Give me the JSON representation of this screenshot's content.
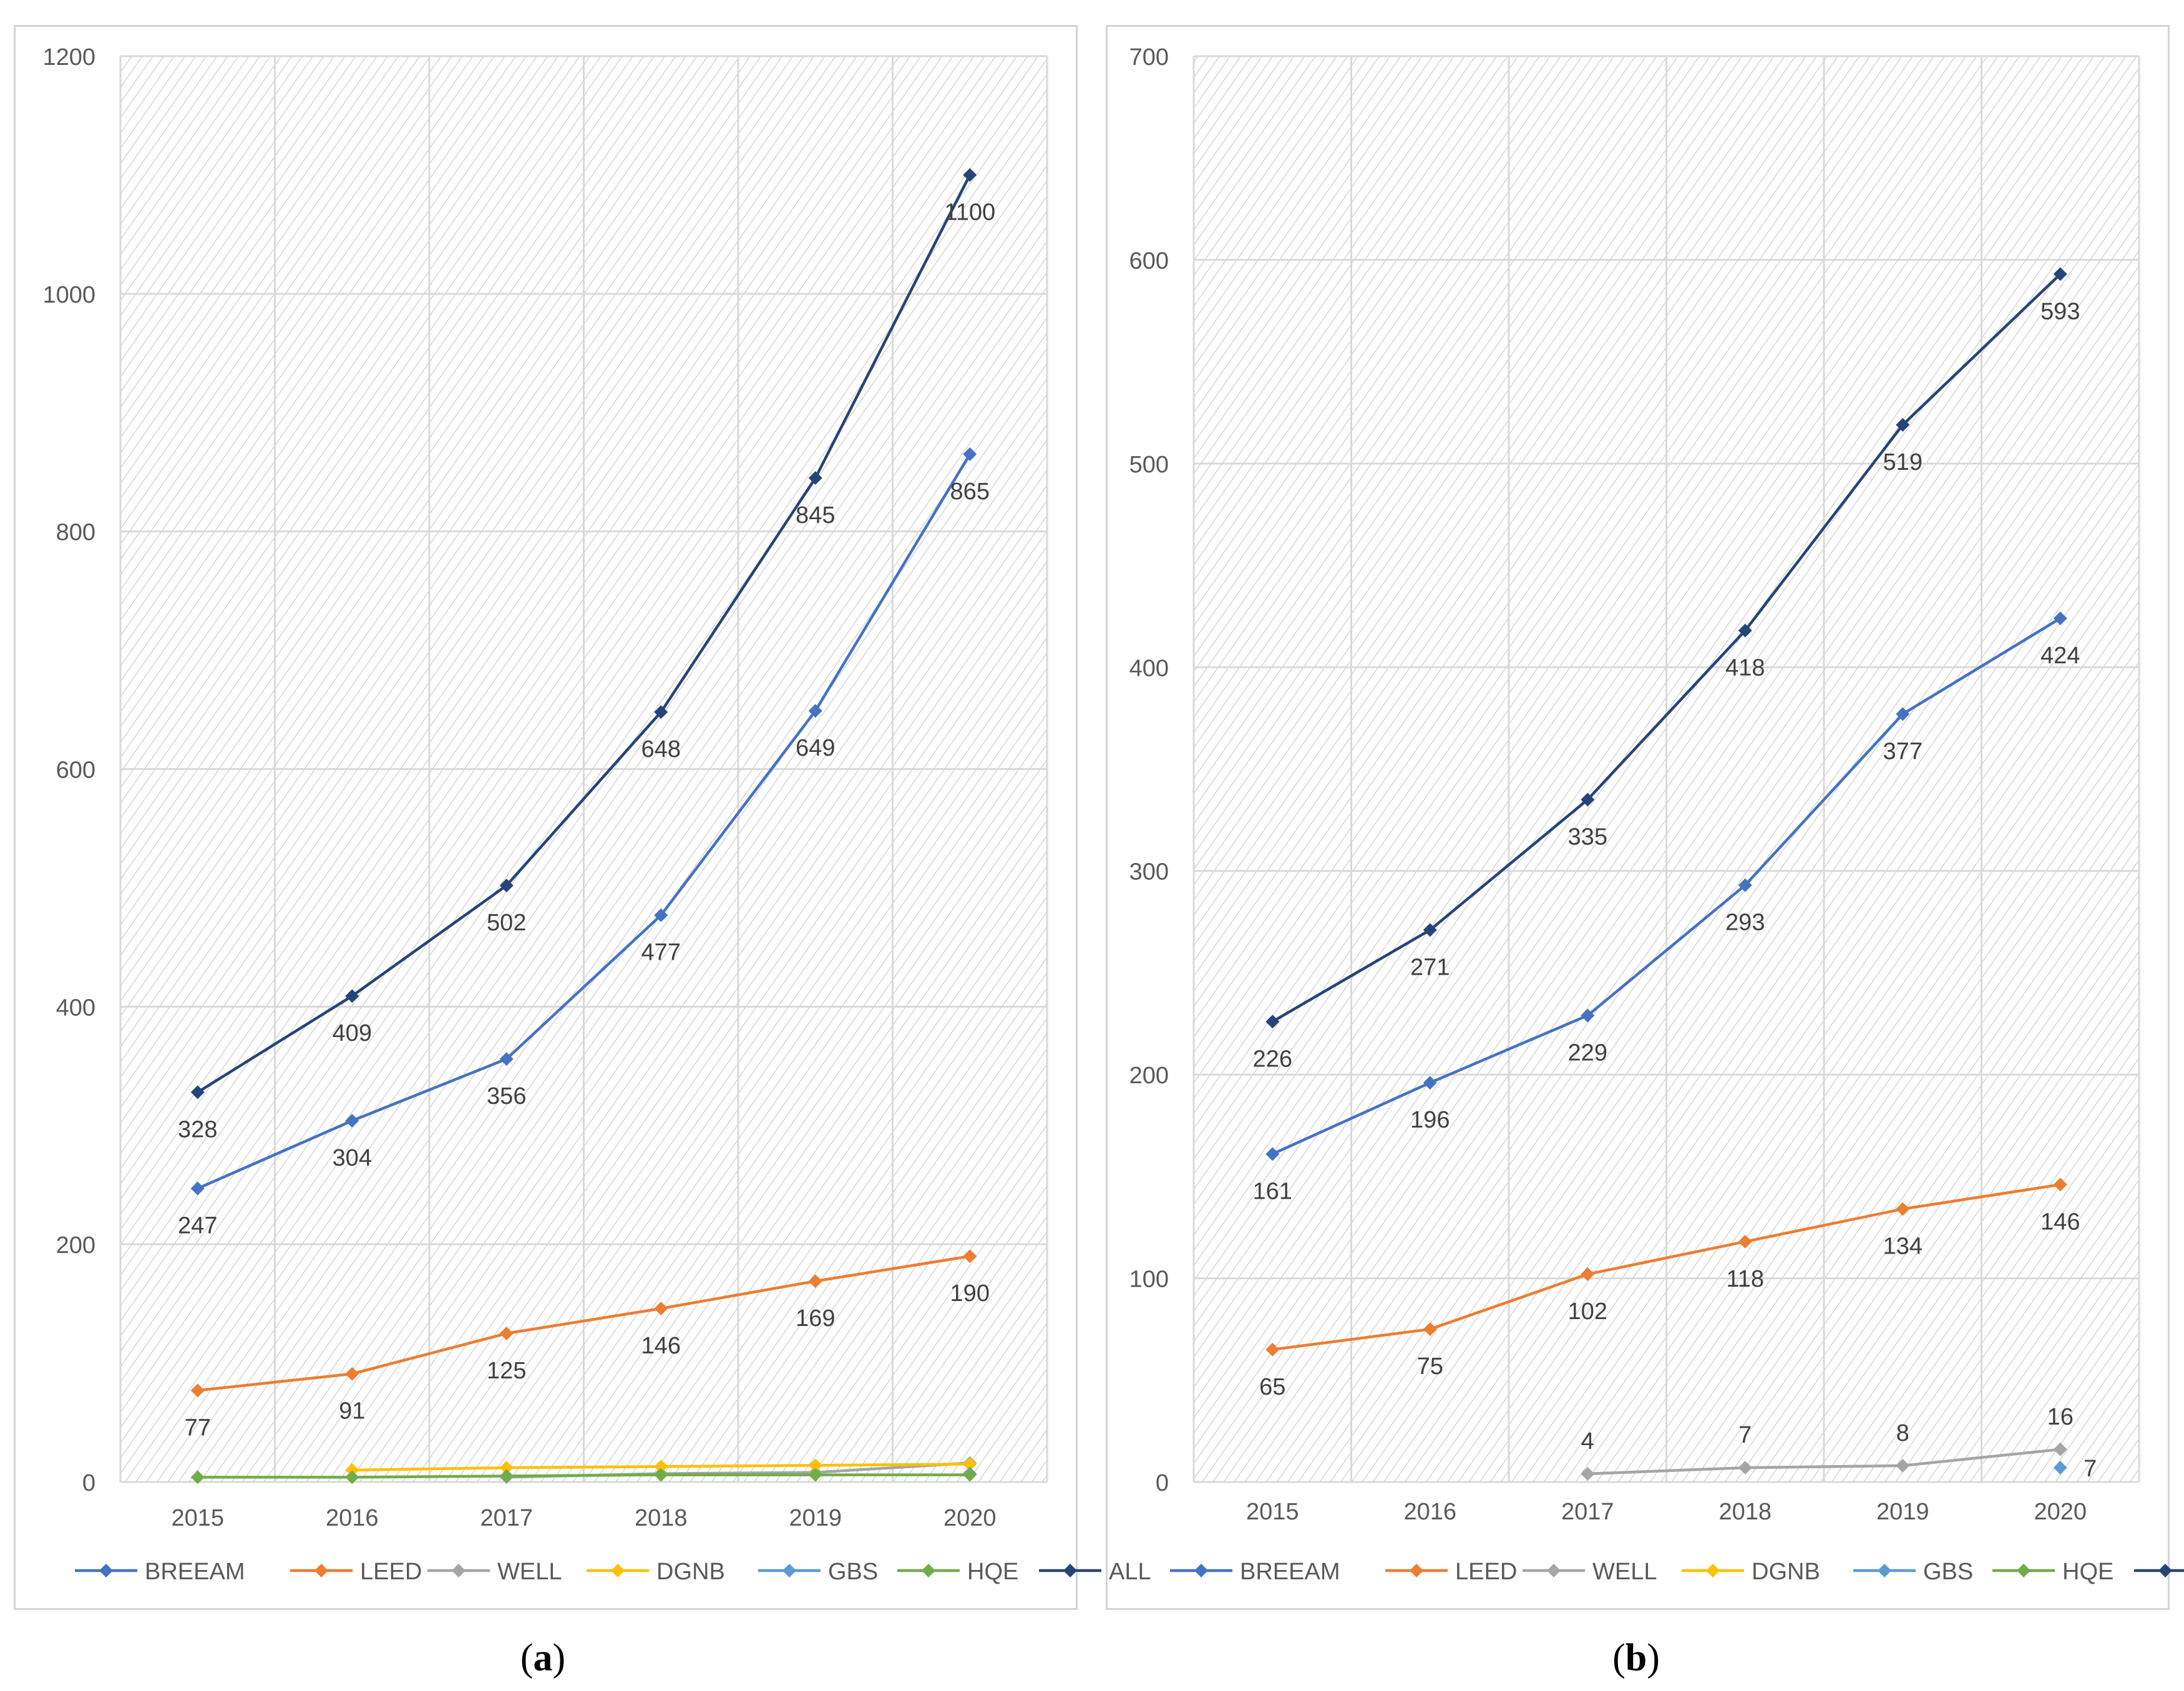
{
  "captions": {
    "a": "a",
    "b": "b"
  },
  "colors": {
    "BREEAM": "#4472c4",
    "LEED": "#ed7d31",
    "WELL": "#a5a5a5",
    "DGNB": "#ffc000",
    "GBS": "#5b9bd5",
    "HQE": "#70ad47",
    "ALL": "#264478",
    "grid": "#d9d9d9",
    "hatch": "#bdbdbd",
    "label": "#404040"
  },
  "chart_data": [
    {
      "id": "a",
      "type": "line",
      "title": "",
      "xlabel": "",
      "ylabel": "",
      "categories": [
        "2015",
        "2016",
        "2017",
        "2018",
        "2019",
        "2020"
      ],
      "ylim": [
        0,
        1200
      ],
      "yticks": [
        "0",
        "200",
        "400",
        "600",
        "800",
        "1000",
        "1200"
      ],
      "legend": [
        "BREEAM",
        "LEED",
        "WELL",
        "DGNB",
        "GBS",
        "HQE",
        "ALL"
      ],
      "legend_position": "bottom",
      "series": [
        {
          "name": "BREEAM",
          "values": [
            247,
            304,
            356,
            477,
            649,
            865
          ],
          "labels": [
            "247",
            "304",
            "356",
            "477",
            "649",
            "865"
          ]
        },
        {
          "name": "LEED",
          "values": [
            77,
            91,
            125,
            146,
            169,
            190
          ],
          "labels": [
            "77",
            "91",
            "125",
            "146",
            "169",
            "190"
          ]
        },
        {
          "name": "WELL",
          "values": [
            null,
            null,
            4,
            7,
            8,
            16
          ],
          "labels": []
        },
        {
          "name": "DGNB",
          "values": [
            null,
            10,
            12,
            13,
            14,
            15
          ],
          "labels": []
        },
        {
          "name": "GBS",
          "values": [
            null,
            null,
            null,
            null,
            null,
            7
          ],
          "labels": []
        },
        {
          "name": "HQE",
          "values": [
            4,
            4,
            5,
            6,
            6,
            6
          ],
          "labels": []
        },
        {
          "name": "ALL",
          "values": [
            328,
            409,
            502,
            648,
            845,
            1100
          ],
          "labels": [
            "328",
            "409",
            "502",
            "648",
            "845",
            "1100"
          ]
        }
      ]
    },
    {
      "id": "b",
      "type": "line",
      "title": "",
      "xlabel": "",
      "ylabel": "",
      "categories": [
        "2015",
        "2016",
        "2017",
        "2018",
        "2019",
        "2020"
      ],
      "ylim": [
        0,
        700
      ],
      "yticks": [
        "0",
        "100",
        "200",
        "300",
        "400",
        "500",
        "600",
        "700"
      ],
      "legend": [
        "BREEAM",
        "LEED",
        "WELL",
        "DGNB",
        "GBS",
        "HQE",
        "ALL"
      ],
      "legend_position": "bottom",
      "series": [
        {
          "name": "BREEAM",
          "values": [
            161,
            196,
            229,
            293,
            377,
            424
          ],
          "labels": [
            "161",
            "196",
            "229",
            "293",
            "377",
            "424"
          ]
        },
        {
          "name": "LEED",
          "values": [
            65,
            75,
            102,
            118,
            134,
            146
          ],
          "labels": [
            "65",
            "75",
            "102",
            "118",
            "134",
            "146"
          ]
        },
        {
          "name": "WELL",
          "values": [
            null,
            null,
            4,
            7,
            8,
            16
          ],
          "labels": [
            "",
            "",
            "4",
            "7",
            "8",
            "16"
          ]
        },
        {
          "name": "DGNB",
          "values": [
            null,
            null,
            null,
            null,
            null,
            null
          ],
          "labels": []
        },
        {
          "name": "GBS",
          "values": [
            null,
            null,
            null,
            null,
            null,
            7
          ],
          "labels": [
            "",
            "",
            "",
            "",
            "",
            "7"
          ]
        },
        {
          "name": "HQE",
          "values": [
            null,
            null,
            null,
            null,
            null,
            null
          ],
          "labels": []
        },
        {
          "name": "ALL",
          "values": [
            226,
            271,
            335,
            418,
            519,
            593
          ],
          "labels": [
            "226",
            "271",
            "335",
            "418",
            "519",
            "593"
          ]
        }
      ]
    }
  ]
}
